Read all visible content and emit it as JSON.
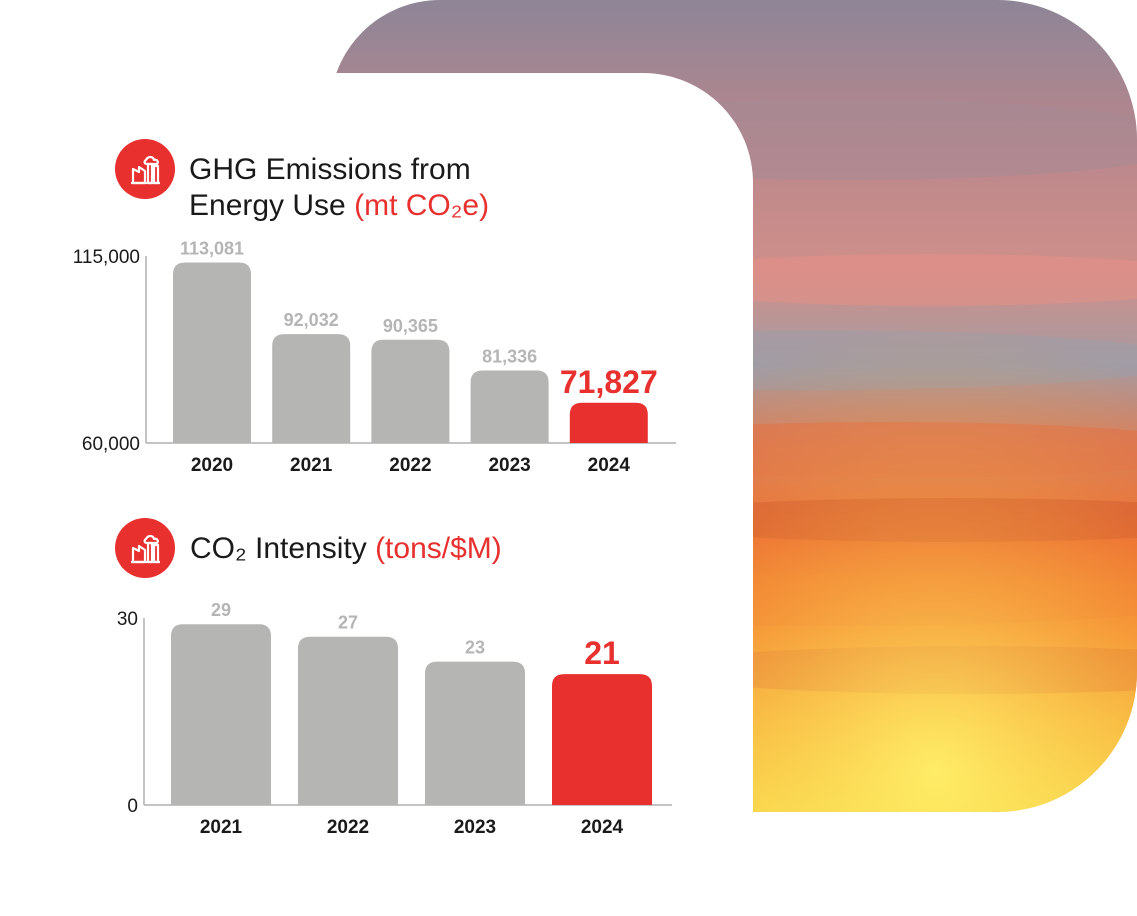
{
  "colors": {
    "accent": "#e8302f",
    "bar": "#b5b5b4",
    "axis": "#b0b0b0",
    "text": "#1a1a1a",
    "value_label": "#b5b5b5"
  },
  "icons": {
    "chart1": "factory-icon",
    "chart2": "factory-icon"
  },
  "chart1_title": {
    "line1": "GHG Emissions from",
    "line2": "Energy Use",
    "unit": "(mt CO₂e)"
  },
  "chart2_title": {
    "main": "CO₂ Intensity",
    "unit": "(tons/$M)"
  },
  "chart_data": [
    {
      "type": "bar",
      "title": "GHG Emissions from Energy Use (mt CO₂e)",
      "categories": [
        "2020",
        "2021",
        "2022",
        "2023",
        "2024"
      ],
      "values": [
        113081,
        92032,
        90365,
        81336,
        71827
      ],
      "value_labels": [
        "113,081",
        "92,032",
        "90,365",
        "81,336",
        "71,827"
      ],
      "highlight_index": 4,
      "ylim": [
        60000,
        115000
      ],
      "yticks": [
        "60,000",
        "115,000"
      ]
    },
    {
      "type": "bar",
      "title": "CO₂ Intensity (tons/$M)",
      "categories": [
        "2021",
        "2022",
        "2023",
        "2024"
      ],
      "values": [
        29,
        27,
        23,
        21
      ],
      "value_labels": [
        "29",
        "27",
        "23",
        "21"
      ],
      "highlight_index": 3,
      "ylim": [
        0,
        30
      ],
      "yticks": [
        "0",
        "30"
      ]
    }
  ]
}
